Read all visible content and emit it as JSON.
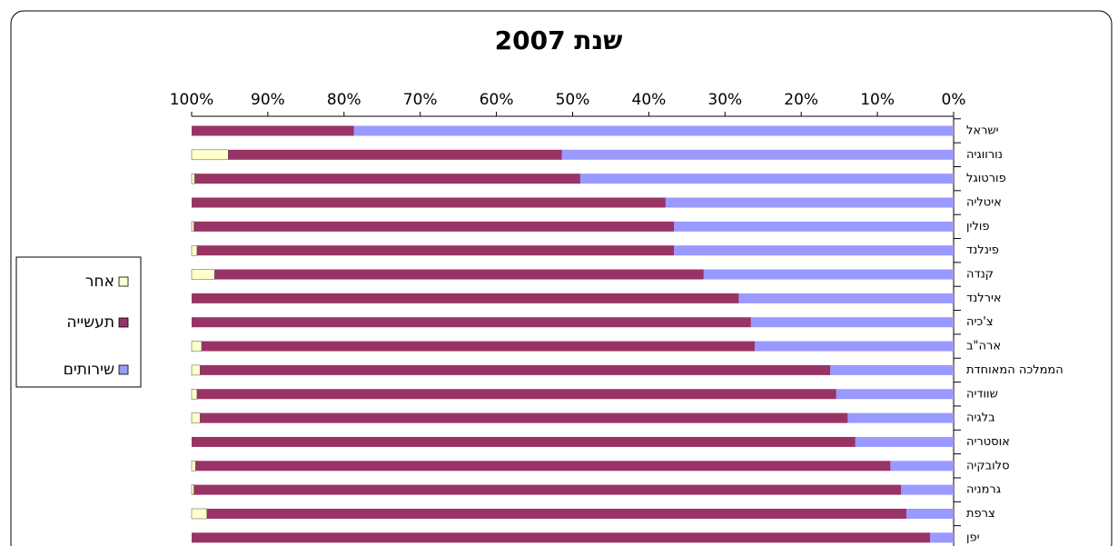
{
  "chart_data": {
    "type": "bar",
    "orientation": "horizontal",
    "stacked": "percent",
    "reversed_x": true,
    "title": "שנת 2007",
    "categories": [
      "ישראל",
      "נורווגיה",
      "פורטוגל",
      "איטליה",
      "פולין",
      "פינלנד",
      "קנדה",
      "אירלנד",
      "צ'כיה",
      "ארה\"ב",
      "הממלכה המאוחדת",
      "שוודיה",
      "בלגיה",
      "אוסטריה",
      "סלובקיה",
      "גרמניה",
      "צרפת",
      "יפן"
    ],
    "series": [
      {
        "name": "שירותים",
        "color": "#9999ff",
        "values": [
          78.7,
          51.4,
          49.0,
          37.8,
          36.7,
          36.7,
          32.8,
          28.2,
          26.6,
          26.1,
          16.2,
          15.4,
          13.9,
          12.9,
          8.3,
          6.9,
          6.2,
          3.1
        ]
      },
      {
        "name": "תעשייה",
        "color": "#993366",
        "values": [
          21.3,
          43.8,
          50.6,
          62.2,
          63.0,
          62.6,
          64.2,
          71.8,
          73.4,
          72.6,
          82.7,
          83.9,
          85.0,
          87.1,
          91.2,
          92.8,
          91.8,
          96.9
        ]
      },
      {
        "name": "אחר",
        "color": "#ffffcc",
        "values": [
          0,
          4.8,
          0.4,
          0,
          0.3,
          0.7,
          3.0,
          0,
          0,
          1.3,
          1.1,
          0.7,
          1.1,
          0,
          0.5,
          0.3,
          2.0,
          0
        ]
      }
    ],
    "xlim": [
      0,
      100
    ],
    "xticks": [
      {
        "value": 100,
        "label": "100%"
      },
      {
        "value": 90,
        "label": "90%"
      },
      {
        "value": 80,
        "label": "80%"
      },
      {
        "value": 70,
        "label": "70%"
      },
      {
        "value": 60,
        "label": "60%"
      },
      {
        "value": 50,
        "label": "50%"
      },
      {
        "value": 40,
        "label": "40%"
      },
      {
        "value": 30,
        "label": "30%"
      },
      {
        "value": 20,
        "label": "20%"
      },
      {
        "value": 10,
        "label": "10%"
      },
      {
        "value": 0,
        "label": "0%"
      }
    ],
    "legend": "left"
  }
}
